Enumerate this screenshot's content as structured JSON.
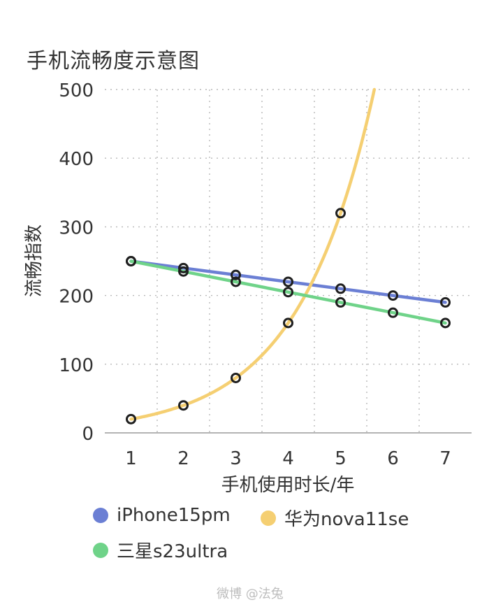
{
  "chart_data": {
    "type": "line",
    "title": "手机流畅度示意图",
    "xlabel": "手机使用时长/年",
    "ylabel": "流畅指数",
    "x": [
      1,
      2,
      3,
      4,
      5,
      6,
      7
    ],
    "xlim": [
      0.5,
      7.5
    ],
    "ylim": [
      0,
      500
    ],
    "yticks": [
      0,
      100,
      200,
      300,
      400,
      500
    ],
    "grid": true,
    "legend_position": "bottom",
    "series": [
      {
        "name": "iPhone15pm",
        "color": "#6b7fd4",
        "values": [
          250,
          240,
          230,
          220,
          210,
          200,
          190
        ],
        "markers": true
      },
      {
        "name": "华为nova11se",
        "color": "#f5cf72",
        "values": [
          20,
          40,
          80,
          160,
          320,
          null,
          null
        ],
        "curve_extends_beyond": true,
        "markers": true
      },
      {
        "name": "三星s23ultra",
        "color": "#6fd389",
        "values": [
          250,
          235,
          220,
          205,
          190,
          175,
          160
        ],
        "markers": true
      }
    ]
  },
  "watermark": "微博 @法兔"
}
